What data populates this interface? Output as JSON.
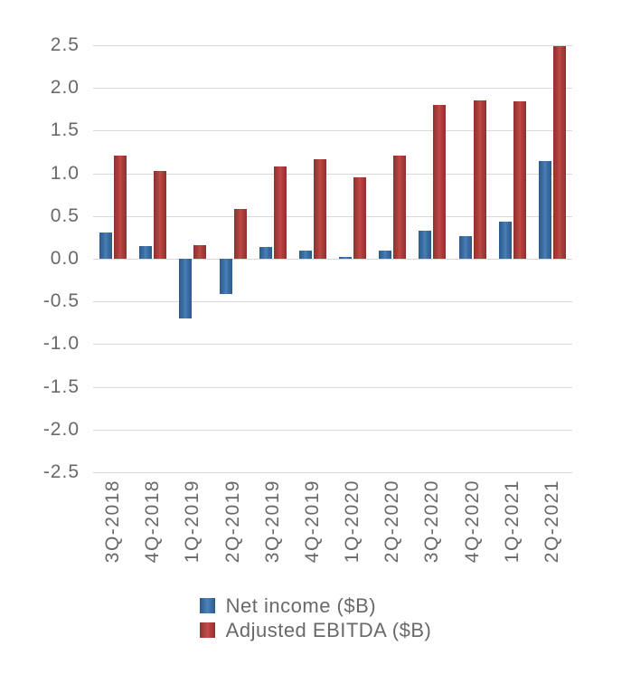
{
  "chart_data": {
    "type": "bar",
    "categories": [
      "3Q-2018",
      "4Q-2018",
      "1Q-2019",
      "2Q-2019",
      "3Q-2019",
      "4Q-2019",
      "1Q-2020",
      "2Q-2020",
      "3Q-2020",
      "4Q-2020",
      "1Q-2021",
      "2Q-2021"
    ],
    "series": [
      {
        "name": "Net income ($B)",
        "color": "#3f74ab",
        "color_edge": "#2d5a8b",
        "color_highlight": "#4e82bb",
        "values": [
          0.31,
          0.15,
          -0.7,
          -0.41,
          0.14,
          0.1,
          0.02,
          0.1,
          0.33,
          0.27,
          0.44,
          1.14
        ]
      },
      {
        "name": "Adjusted EBITDA ($B)",
        "color": "#b3413e",
        "color_edge": "#8c3230",
        "color_highlight": "#c24c48",
        "values": [
          1.21,
          1.03,
          0.16,
          0.58,
          1.08,
          1.17,
          0.95,
          1.21,
          1.8,
          1.85,
          1.84,
          2.49
        ]
      }
    ],
    "ylim": [
      -2.5,
      2.5
    ],
    "ytick_step": 0.5,
    "ytick_labels": [
      "2.5",
      "2.0",
      "1.5",
      "1.0",
      "0.5",
      "0.0",
      "-0.5",
      "-1.0",
      "-1.5",
      "-2.0",
      "-2.5"
    ],
    "grid": true,
    "legend_position": "bottom"
  },
  "colors": {
    "background": "#ffffff",
    "gridline": "#d9d9d9",
    "axis_text": "#696969"
  }
}
